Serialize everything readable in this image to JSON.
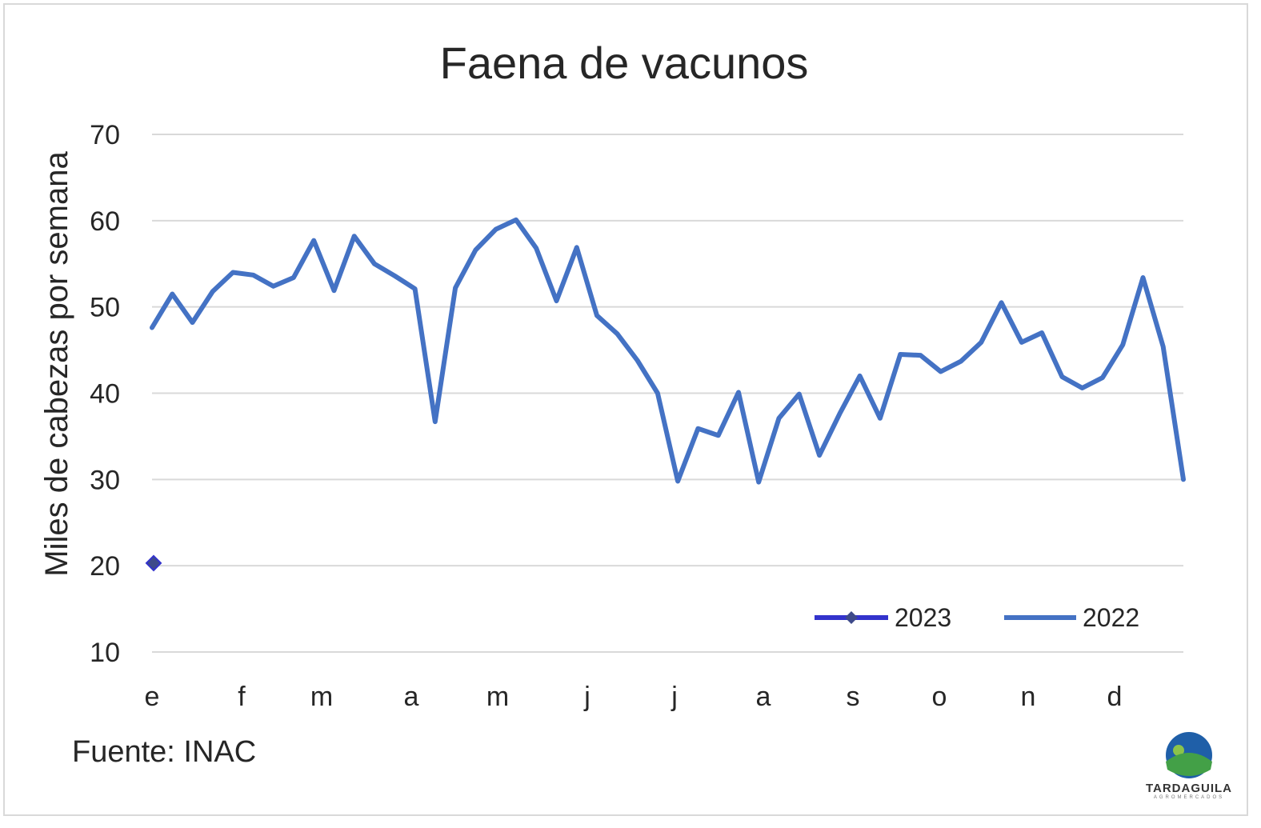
{
  "chart_data": {
    "type": "line",
    "title": "Faena de vacunos",
    "ylabel": "Miles de cabezas por semana",
    "xlabel": "",
    "ylim": [
      10,
      70
    ],
    "yticks": [
      10,
      20,
      30,
      40,
      50,
      60,
      70
    ],
    "grid": true,
    "legend_position": "bottom-right",
    "month_labels": [
      "e",
      "f",
      "m",
      "a",
      "m",
      "j",
      "j",
      "a",
      "s",
      "o",
      "n",
      "d"
    ],
    "series": [
      {
        "name": "2023",
        "color": "#3333cc",
        "marker": "diamond",
        "values": [
          20.3
        ]
      },
      {
        "name": "2022",
        "color": "#4472c4",
        "marker": "none",
        "values": [
          47.6,
          51.5,
          48.2,
          51.8,
          54.0,
          53.7,
          52.4,
          53.4,
          57.7,
          51.9,
          58.2,
          55.0,
          53.6,
          52.1,
          36.7,
          52.2,
          56.6,
          59.0,
          60.1,
          56.8,
          50.7,
          56.9,
          49.0,
          46.9,
          43.8,
          40.0,
          29.8,
          35.9,
          35.1,
          40.1,
          29.7,
          37.1,
          39.9,
          32.8,
          37.6,
          42.0,
          37.1,
          44.5,
          44.4,
          42.5,
          43.7,
          45.9,
          50.5,
          45.9,
          47.0,
          41.9,
          40.6,
          41.8,
          45.6,
          53.4,
          45.4,
          30.0
        ]
      }
    ]
  },
  "source": "Fuente: INAC",
  "logo": {
    "name": "TARDAGUILA",
    "subtitle": "AGROMERCADOS",
    "colors": {
      "sky": "#1f5fa8",
      "hill": "#43a047",
      "sun": "#8bc34a"
    }
  },
  "colors": {
    "grid": "#d9d9d9",
    "text": "#262626"
  }
}
